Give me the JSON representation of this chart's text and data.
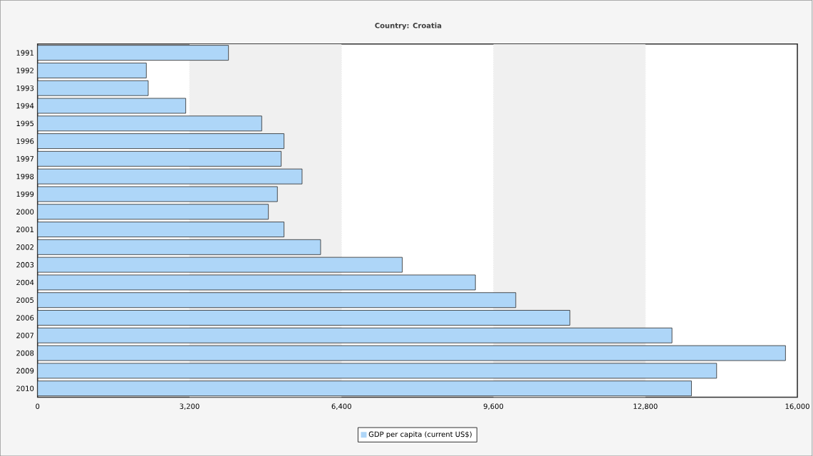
{
  "chart_data": {
    "type": "bar",
    "orientation": "horizontal",
    "title": "Country: Croatia",
    "categories": [
      "1991",
      "1992",
      "1993",
      "1994",
      "1995",
      "1996",
      "1997",
      "1998",
      "1999",
      "2000",
      "2001",
      "2002",
      "2003",
      "2004",
      "2005",
      "2006",
      "2007",
      "2008",
      "2009",
      "2010"
    ],
    "series": [
      {
        "name": "GDP per capita (current US$)",
        "color": "#aed6f8",
        "values": [
          4020,
          2290,
          2330,
          3120,
          4720,
          5190,
          5130,
          5570,
          5050,
          4860,
          5190,
          5960,
          7680,
          9220,
          10070,
          11210,
          13360,
          15750,
          14300,
          13770
        ]
      }
    ],
    "xlim": [
      0,
      16000
    ],
    "xticks": [
      0,
      {
        "value": 3200,
        "label": "3,200"
      },
      {
        "value": 6400,
        "label": "6,400"
      },
      {
        "value": 9600,
        "label": "9,600"
      },
      {
        "value": 12800,
        "label": "12,800"
      },
      {
        "value": 16000,
        "label": "16,000"
      }
    ],
    "bands": [
      {
        "axis": "x",
        "from": 3200,
        "to": 6400,
        "color": "#f0f0f0"
      },
      {
        "axis": "x",
        "from": 9600,
        "to": 12800,
        "color": "#f0f0f0"
      }
    ],
    "grid": "x",
    "legend": "bottom"
  }
}
